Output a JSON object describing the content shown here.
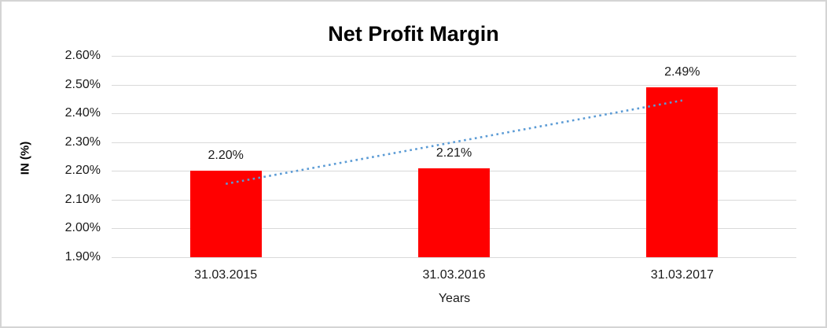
{
  "chart": {
    "title": "Net Profit Margin",
    "x_axis_title": "Years",
    "y_axis_title": "IN (%)"
  },
  "chart_data": {
    "type": "bar",
    "title": "Net Profit Margin",
    "xlabel": "Years",
    "ylabel": "IN (%)",
    "categories": [
      "31.03.2015",
      "31.03.2016",
      "31.03.2017"
    ],
    "values": [
      2.2,
      2.21,
      2.49
    ],
    "data_labels": [
      "2.20%",
      "2.21%",
      "2.49%"
    ],
    "ylim": [
      1.9,
      2.6
    ],
    "y_ticks": [
      {
        "value": 2.6,
        "label": "2.60%"
      },
      {
        "value": 2.5,
        "label": "2.50%"
      },
      {
        "value": 2.4,
        "label": "2.40%"
      },
      {
        "value": 2.3,
        "label": "2.30%"
      },
      {
        "value": 2.2,
        "label": "2.20%"
      },
      {
        "value": 2.1,
        "label": "2.10%"
      },
      {
        "value": 2.0,
        "label": "2.00%"
      },
      {
        "value": 1.9,
        "label": "1.90%"
      }
    ],
    "grid": true,
    "legend": "none",
    "bar_color": "#ff0000",
    "gridline_color": "#d9d9d9",
    "trendline": {
      "type": "linear",
      "style": "dotted",
      "color": "#5b9bd5",
      "start_value": 2.155,
      "end_value": 2.445
    }
  }
}
